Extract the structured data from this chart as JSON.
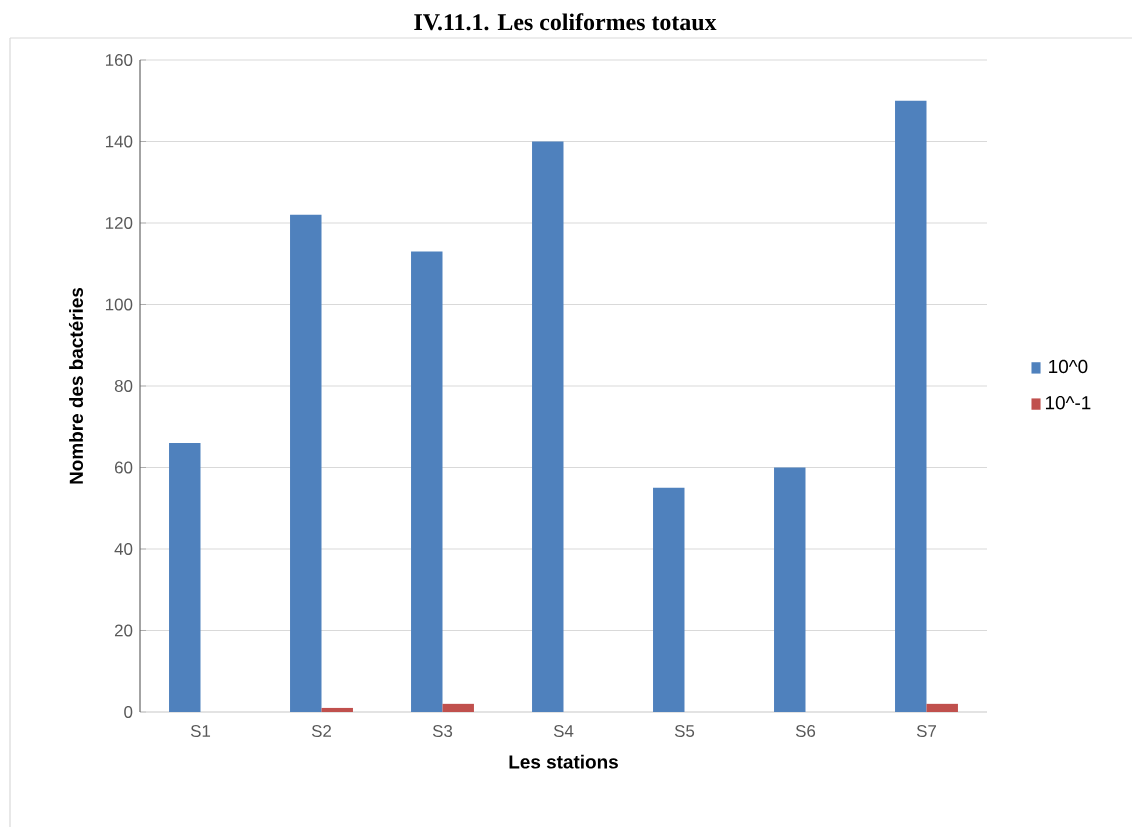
{
  "chart_data": {
    "type": "bar",
    "title": "IV.11.1.          Les coliformes totaux",
    "xlabel": "Les stations",
    "ylabel": "Nombre des  bactéries",
    "categories": [
      "S1",
      "S2",
      "S3",
      "S4",
      "S5",
      "S6",
      "S7"
    ],
    "series": [
      {
        "name": "10^0",
        "color": "#4f81bd",
        "values": [
          66,
          122,
          113,
          140,
          55,
          60,
          150
        ]
      },
      {
        "name": "10^-1",
        "color": "#c0504d",
        "values": [
          0,
          1,
          2,
          0,
          0,
          0,
          2
        ]
      }
    ],
    "ylim": [
      0,
      160
    ],
    "yticks": [
      0,
      20,
      40,
      60,
      80,
      100,
      120,
      140,
      160
    ],
    "grid": "y",
    "legend": "right"
  }
}
